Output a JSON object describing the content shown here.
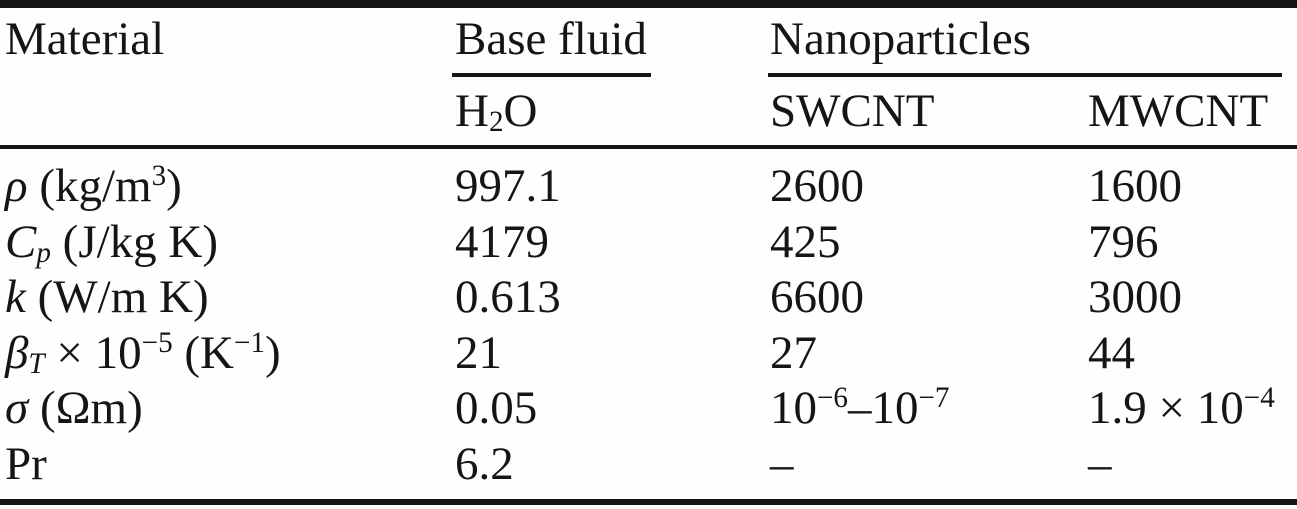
{
  "table": {
    "header": {
      "material": "Material",
      "base_fluid_group": "Base fluid",
      "nanoparticles_group": "Nanoparticles",
      "h2o": {
        "p1": "H",
        "sub": "2",
        "p2": "O"
      },
      "swcnt": "SWCNT",
      "mwcnt": "MWCNT"
    },
    "rows": [
      {
        "label": {
          "sym": "ρ",
          "t1": " (kg/m",
          "s1": "3",
          "t2": ")"
        },
        "h2o": {
          "p1": "997.1"
        },
        "swcnt": {
          "p1": "2600"
        },
        "mwcnt": {
          "p1": "1600"
        }
      },
      {
        "label": {
          "sym": "C",
          "sub": "p",
          "t1": " (J/kg K)"
        },
        "h2o": {
          "p1": "4179"
        },
        "swcnt": {
          "p1": "425"
        },
        "mwcnt": {
          "p1": "796"
        }
      },
      {
        "label": {
          "sym": "k",
          "t1": " (W/m K)"
        },
        "h2o": {
          "p1": "0.613"
        },
        "swcnt": {
          "p1": "6600"
        },
        "mwcnt": {
          "p1": "3000"
        }
      },
      {
        "label": {
          "sym": "β",
          "sub": "T",
          "t1": " × 10",
          "s1": "−5",
          "t2": " (K",
          "s2": "−1",
          "t3": ")"
        },
        "h2o": {
          "p1": "21"
        },
        "swcnt": {
          "p1": "27"
        },
        "mwcnt": {
          "p1": "44"
        }
      },
      {
        "label": {
          "sym": "σ",
          "t1": " (Ωm)"
        },
        "h2o": {
          "p1": "0.05"
        },
        "swcnt": {
          "p1": "10",
          "s1": "−6",
          "p2": "–10",
          "s2": "−7"
        },
        "mwcnt": {
          "p1": "1.9 × 10",
          "s1": "−4"
        }
      },
      {
        "label": {
          "t1": "Pr"
        },
        "h2o": {
          "p1": "6.2"
        },
        "swcnt": {
          "p1": "–"
        },
        "mwcnt": {
          "p1": "–"
        }
      }
    ]
  },
  "colors": {
    "ink": "#151515",
    "paper": "#fefefe"
  },
  "chart_data": {
    "type": "table",
    "title": "Thermophysical properties of base fluid and nanoparticles",
    "columns": [
      "Material",
      "Base fluid: H2O",
      "Nanoparticles: SWCNT",
      "Nanoparticles: MWCNT"
    ],
    "rows": [
      [
        "rho (kg/m^3)",
        "997.1",
        "2600",
        "1600"
      ],
      [
        "Cp (J/kg K)",
        "4179",
        "425",
        "796"
      ],
      [
        "k (W/m K)",
        "0.613",
        "6600",
        "3000"
      ],
      [
        "beta_T × 10^-5 (K^-1)",
        "21",
        "27",
        "44"
      ],
      [
        "sigma (Ohm m)",
        "0.05",
        "10^-6–10^-7",
        "1.9 × 10^-4"
      ],
      [
        "Pr",
        "6.2",
        "–",
        "–"
      ]
    ]
  }
}
